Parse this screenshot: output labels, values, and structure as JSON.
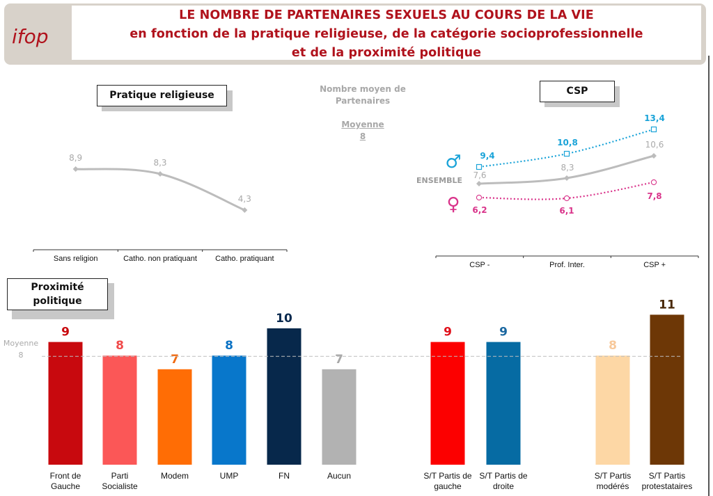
{
  "header": {
    "logo_text": "ifop",
    "title_lines": [
      "LE NOMBRE DE PARTENAIRES SEXUELS AU COURS DE LA VIE",
      "en fonction de la pratique religieuse, de la catégorie socioprofessionnelle",
      "et de la proximité politique"
    ]
  },
  "colors": {
    "title": "#b0121c",
    "ensemble": "#bcbcbc",
    "male": "#1aa3d8",
    "female": "#d9338a",
    "mean_line": "#bdbdbd"
  },
  "mean_note": {
    "line1": "Nombre moyen de",
    "line2": "Partenaires",
    "mean_label": "Moyenne",
    "mean_value": "8"
  },
  "sections": {
    "religion": "Pratique religieuse",
    "csp": "CSP",
    "politics_line1": "Proximité",
    "politics_line2": "politique"
  },
  "chart_data": [
    {
      "type": "line",
      "title": "Pratique religieuse",
      "categories": [
        "Sans religion",
        "Catho. non pratiquant",
        "Catho. pratiquant"
      ],
      "series": [
        {
          "name": "Ensemble",
          "values": [
            8.9,
            8.3,
            4.3
          ],
          "labels": [
            "8,9",
            "8,3",
            "4,3"
          ],
          "color": "#bcbcbc"
        }
      ],
      "ylim": [
        0,
        14
      ],
      "grid": false
    },
    {
      "type": "line",
      "title": "CSP",
      "categories": [
        "CSP -",
        "Prof. Inter.",
        "CSP +"
      ],
      "series": [
        {
          "name": "Hommes",
          "symbol": "♂",
          "values": [
            9.4,
            10.8,
            13.4
          ],
          "labels": [
            "9,4",
            "10,8",
            "13,4"
          ],
          "color": "#1aa3d8",
          "style": "dotted",
          "marker": "square"
        },
        {
          "name": "ENSEMBLE",
          "values": [
            7.6,
            8.3,
            10.6
          ],
          "labels": [
            "7,6",
            "8,3",
            "10,6"
          ],
          "color": "#bcbcbc",
          "style": "solid",
          "marker": "diamond"
        },
        {
          "name": "Femmes",
          "symbol": "♀",
          "values": [
            6.2,
            6.1,
            7.8
          ],
          "labels": [
            "6,2",
            "6,1",
            "7,8"
          ],
          "color": "#d9338a",
          "style": "dotted",
          "marker": "circle"
        }
      ],
      "ylim": [
        0,
        14
      ],
      "grid": false
    },
    {
      "type": "bar",
      "title": "Proximité politique",
      "reference_line": {
        "label": "Moyenne",
        "value": 8
      },
      "ylim": [
        0,
        11
      ],
      "bars": [
        {
          "label": "Front de Gauche",
          "lines": [
            "Front de",
            "Gauche"
          ],
          "value": 9,
          "color": "#c8090e",
          "label_color": "#c8090e"
        },
        {
          "label": "Parti Socialiste",
          "lines": [
            "Parti",
            "Socialiste"
          ],
          "value": 8,
          "color": "#fb5757",
          "label_color": "#f04a4a"
        },
        {
          "label": "Modem",
          "lines": [
            "Modem"
          ],
          "value": 7,
          "color": "#ff6d05",
          "label_color": "#f06a10"
        },
        {
          "label": "UMP",
          "lines": [
            "UMP"
          ],
          "value": 8,
          "color": "#0877cb",
          "label_color": "#0a72c4"
        },
        {
          "label": "FN",
          "lines": [
            "FN"
          ],
          "value": 10,
          "color": "#07284b",
          "label_color": "#0a2a4f"
        },
        {
          "label": "Aucun",
          "lines": [
            "Aucun"
          ],
          "value": 7,
          "color": "#b2b2b2",
          "label_color": "#a8a8a8"
        },
        {
          "label": "S/T Partis de gauche",
          "lines": [
            "S/T Partis de",
            "gauche"
          ],
          "value": 9,
          "color": "#fc0000",
          "label_color": "#e0101a"
        },
        {
          "label": "S/T Partis de droite",
          "lines": [
            "S/T Partis de",
            "droite"
          ],
          "value": 9,
          "color": "#066ba3",
          "label_color": "#1a67a0"
        },
        {
          "label": "S/T Partis modérés",
          "lines": [
            "S/T Partis",
            "modérés"
          ],
          "value": 8,
          "color": "#fdd7a5",
          "label_color": "#f7c89a"
        },
        {
          "label": "S/T Partis protestataires",
          "lines": [
            "S/T Partis",
            "protestataires"
          ],
          "value": 11,
          "color": "#6d3706",
          "label_color": "#4a2a0a"
        }
      ]
    }
  ]
}
